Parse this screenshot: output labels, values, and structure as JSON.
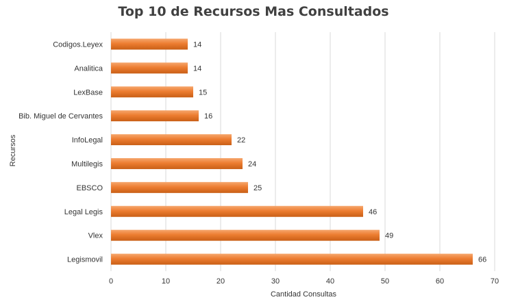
{
  "chart_data": {
    "type": "bar",
    "orientation": "horizontal",
    "title": "Top 10 de Recursos Mas Consultados",
    "xlabel": "Cantidad Consultas",
    "ylabel": "Recursos",
    "categories": [
      "Codigos.Leyex",
      "Analitica",
      "LexBase",
      "Bib. Miguel de Cervantes",
      "InfoLegal",
      "Multilegis",
      "EBSCO",
      "Legal Legis",
      "Vlex",
      "Legismovil"
    ],
    "values": [
      14,
      14,
      15,
      16,
      22,
      24,
      25,
      46,
      49,
      66
    ],
    "xlim": [
      0,
      70
    ],
    "xticks": [
      0,
      10,
      20,
      30,
      40,
      50,
      60,
      70
    ],
    "grid": true,
    "legend": "none",
    "colors": {
      "bar": "#ed7d31",
      "bar_light": "#f6a76e",
      "bar_dark": "#c95f16"
    }
  }
}
